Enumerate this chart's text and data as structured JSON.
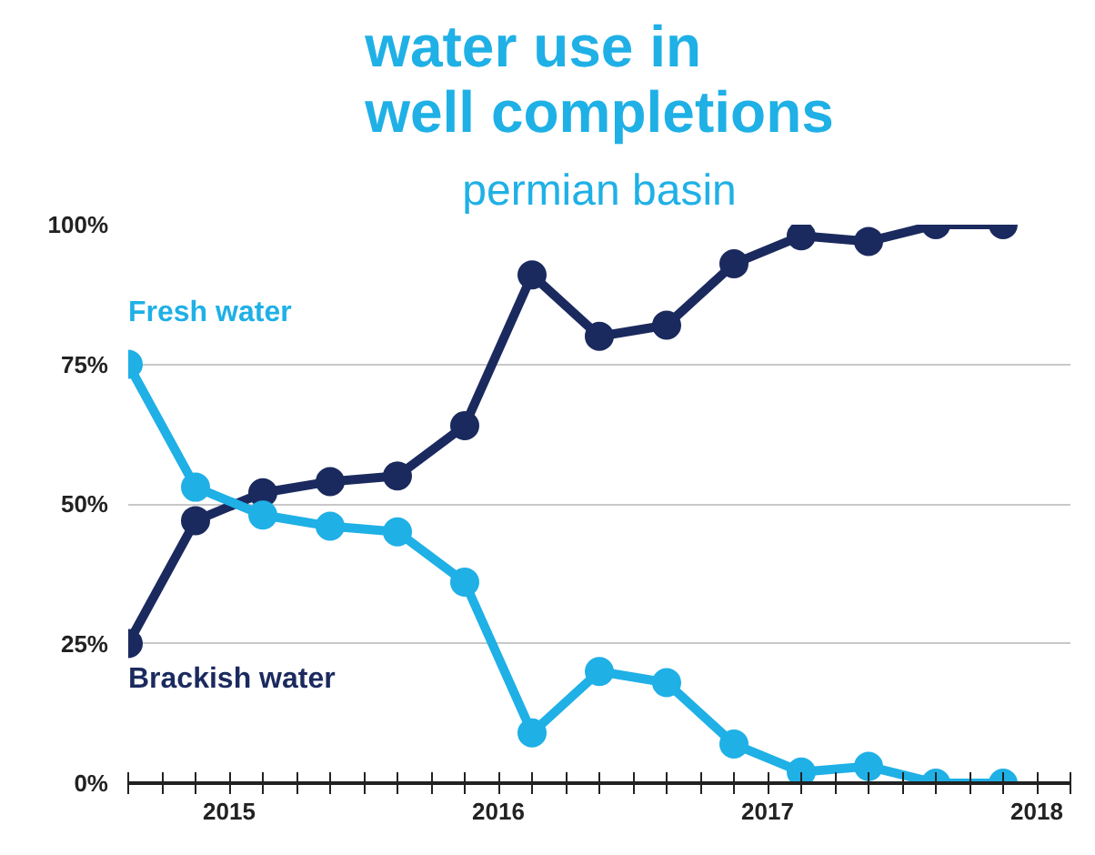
{
  "chart_data": {
    "type": "line",
    "title": "water use in\nwell completions",
    "subtitle": "permian basin",
    "x": [
      2014.625,
      2014.875,
      2015.125,
      2015.375,
      2015.625,
      2015.875,
      2016.125,
      2016.375,
      2016.625,
      2016.875,
      2017.125,
      2017.375,
      2017.625,
      2017.875
    ],
    "series": [
      {
        "name": "Brackish water",
        "color": "#1b2a5e",
        "values": [
          25,
          47,
          52,
          54,
          55,
          64,
          91,
          80,
          82,
          93,
          98,
          97,
          100,
          100
        ]
      },
      {
        "name": "Fresh water",
        "color": "#1fb0e6",
        "values": [
          75,
          53,
          48,
          46,
          45,
          36,
          9,
          20,
          18,
          7,
          2,
          3,
          0,
          0
        ]
      }
    ],
    "ylim": [
      0,
      100
    ],
    "yticks": [
      {
        "value": 0,
        "label": "0%"
      },
      {
        "value": 25,
        "label": "25%"
      },
      {
        "value": 50,
        "label": "50%"
      },
      {
        "value": 75,
        "label": "75%"
      },
      {
        "value": 100,
        "label": "100%"
      }
    ],
    "xlim": [
      2014.625,
      2018.125
    ],
    "xticks": [
      {
        "value": 2014.625,
        "label": null
      },
      {
        "value": 2014.75,
        "label": null
      },
      {
        "value": 2014.875,
        "label": null
      },
      {
        "value": 2015,
        "label": "2015"
      },
      {
        "value": 2015.125,
        "label": null
      },
      {
        "value": 2015.25,
        "label": null
      },
      {
        "value": 2015.375,
        "label": null
      },
      {
        "value": 2015.5,
        "label": null
      },
      {
        "value": 2015.625,
        "label": null
      },
      {
        "value": 2015.75,
        "label": null
      },
      {
        "value": 2015.875,
        "label": null
      },
      {
        "value": 2016,
        "label": "2016"
      },
      {
        "value": 2016.125,
        "label": null
      },
      {
        "value": 2016.25,
        "label": null
      },
      {
        "value": 2016.375,
        "label": null
      },
      {
        "value": 2016.5,
        "label": null
      },
      {
        "value": 2016.625,
        "label": null
      },
      {
        "value": 2016.75,
        "label": null
      },
      {
        "value": 2016.875,
        "label": null
      },
      {
        "value": 2017,
        "label": "2017"
      },
      {
        "value": 2017.125,
        "label": null
      },
      {
        "value": 2017.25,
        "label": null
      },
      {
        "value": 2017.375,
        "label": null
      },
      {
        "value": 2017.5,
        "label": null
      },
      {
        "value": 2017.625,
        "label": null
      },
      {
        "value": 2017.75,
        "label": null
      },
      {
        "value": 2017.875,
        "label": null
      },
      {
        "value": 2018,
        "label": "2018"
      },
      {
        "value": 2018.125,
        "label": null
      }
    ],
    "grid": "y",
    "marker": "circle",
    "line_style": "solid"
  }
}
